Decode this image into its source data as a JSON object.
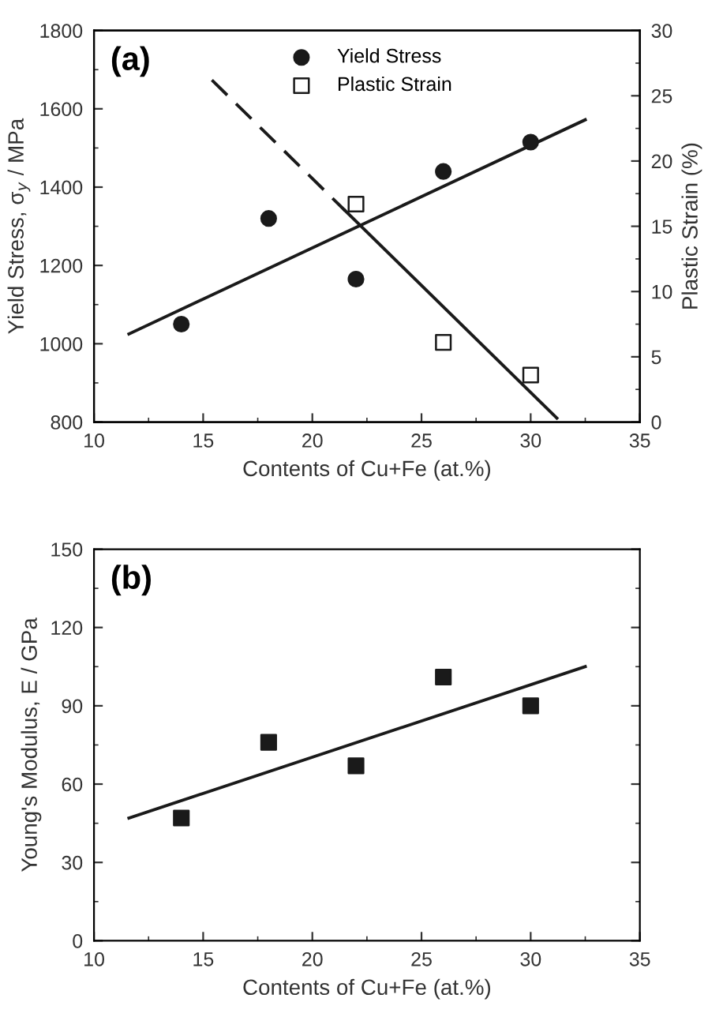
{
  "chart_data": [
    {
      "type": "scatter",
      "title": "(a)",
      "xlabel": "Contents of Cu+Fe (at.%)",
      "ylabel": "Yield Stress, σ$_{y}$ / MPa",
      "y2label": "Plastic Strain (%)",
      "xlim": [
        10,
        35
      ],
      "xticks": [
        10,
        15,
        20,
        25,
        30,
        35
      ],
      "ylim": [
        800,
        1800
      ],
      "yticks": [
        800,
        1000,
        1200,
        1400,
        1600,
        1800
      ],
      "y2lim": [
        0,
        30
      ],
      "y2ticks": [
        0,
        5,
        10,
        15,
        20,
        25,
        30
      ],
      "grid": false,
      "legend": "top",
      "series": [
        {
          "name": "Yield Stress",
          "type": "scatter",
          "marker": "circle",
          "color": "#1a1a1a",
          "x": [
            14,
            18,
            22,
            26,
            30
          ],
          "values": [
            1050,
            1320,
            1165,
            1440,
            1515
          ]
        },
        {
          "name": "Plastic Strain",
          "type": "scatter",
          "marker": "square",
          "color": "#1a1a1a",
          "axis": "y2",
          "x": [
            22,
            26,
            30
          ],
          "values": [
            16.7,
            6.1,
            3.6
          ]
        },
        {
          "type": "line",
          "color": "#1a1a1a",
          "line_style": "solid",
          "x": [
            11.6,
            32.5
          ],
          "values": [
            1025,
            1572
          ]
        },
        {
          "type": "line",
          "color": "#1a1a1a",
          "line_style": "dashed",
          "axis": "y2",
          "x": [
            15.4,
            21.5
          ],
          "values": [
            26.2,
            16.2
          ]
        },
        {
          "type": "line",
          "color": "#1a1a1a",
          "line_style": "solid",
          "axis": "y2",
          "x": [
            21.5,
            31.2
          ],
          "values": [
            16.2,
            0.3
          ]
        }
      ]
    },
    {
      "type": "scatter",
      "title": "(b)",
      "xlabel": "Contents of Cu+Fe (at.%)",
      "ylabel": "Young's Modulus, E / GPa",
      "xlim": [
        10,
        35
      ],
      "xticks": [
        10,
        15,
        20,
        25,
        30,
        35
      ],
      "ylim": [
        0,
        150
      ],
      "yticks": [
        0,
        30,
        60,
        90,
        120,
        150
      ],
      "grid": false,
      "series": [
        {
          "type": "scatter",
          "marker": "square",
          "color": "#1a1a1a",
          "x": [
            14,
            18,
            22,
            26,
            30
          ],
          "values": [
            47,
            76,
            67,
            101,
            90
          ]
        },
        {
          "type": "line",
          "color": "#1a1a1a",
          "line_style": "solid",
          "x": [
            11.6,
            32.5
          ],
          "values": [
            47,
            105
          ]
        }
      ]
    }
  ]
}
